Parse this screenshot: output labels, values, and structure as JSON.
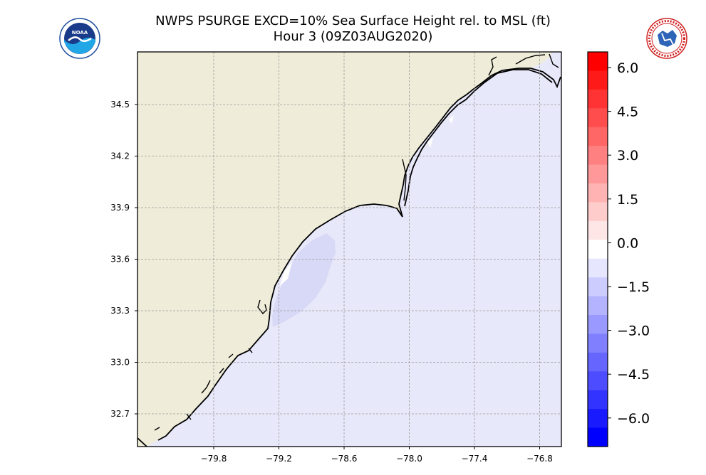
{
  "title_line1": "NWPS PSURGE EXCD=10% Sea Surface Height rel. to MSL (ft)",
  "title_line2": "Hour 3 (09Z03AUG2020)",
  "logos": {
    "left": {
      "name": "noaa-logo",
      "text": "NOAA"
    },
    "right": {
      "name": "nws-logo",
      "text": "NATIONAL WEATHER SERVICE"
    }
  },
  "map": {
    "lon_ticks": [
      "−79.8",
      "−79.2",
      "−78.6",
      "−78.0",
      "−77.4",
      "−76.8"
    ],
    "lat_ticks": [
      "34.5",
      "34.2",
      "33.9",
      "33.6",
      "33.3",
      "33.0",
      "32.7"
    ],
    "land_color": "#efedd9",
    "sea_color": "#e8e8fb",
    "surge_color": "#d8d8f7"
  },
  "colorbar": {
    "tick_labels": [
      "6.0",
      "4.5",
      "3.0",
      "1.5",
      "0.0",
      "−1.5",
      "−3.0",
      "−4.5",
      "−6.0"
    ],
    "colors_top_to_bottom": [
      "#ff0000",
      "#ff1a1a",
      "#ff3333",
      "#ff4d4d",
      "#ff6666",
      "#ff8080",
      "#ff9999",
      "#ffb3b3",
      "#ffcccc",
      "#ffe6e6",
      "#ffffff",
      "#e6e6ff",
      "#ccccff",
      "#b3b3ff",
      "#9999ff",
      "#8080ff",
      "#6666ff",
      "#4d4dff",
      "#3333ff",
      "#1a1aff",
      "#0000ff"
    ]
  }
}
